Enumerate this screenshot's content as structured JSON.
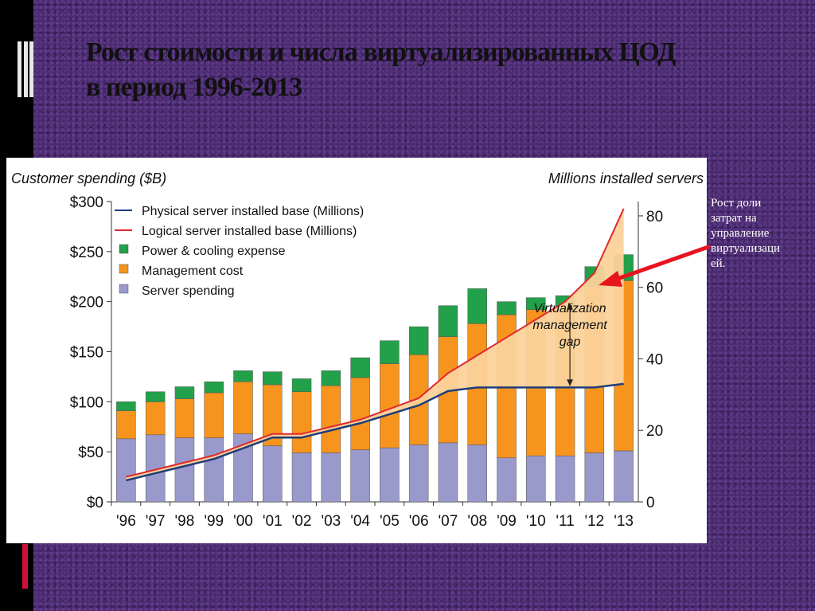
{
  "slide": {
    "title_line1": "Рост стоимости и числа виртуализированных  ЦОД",
    "title_line2": "в период 1996-2013",
    "note_lines": [
      "Рост доли",
      "затрат на",
      "управление",
      "виртуализаци",
      "ей."
    ],
    "colors": {
      "background": "#4a2a6e",
      "accent_red": "#d0103a",
      "arrow": "#e8141e"
    }
  },
  "chart_data": {
    "type": "bar",
    "stacked": true,
    "y_left_title": "Customer spending ($B)",
    "y_right_title": "Millions installed servers",
    "categories": [
      "'96",
      "'97",
      "'98",
      "'99",
      "'00",
      "'01",
      "'02",
      "'03",
      "'04",
      "'05",
      "'06",
      "'07",
      "'08",
      "'09",
      "'10",
      "'11",
      "'12",
      "'13"
    ],
    "y_left_ticks": [
      "$0",
      "$50",
      "$100",
      "$150",
      "$200",
      "$250",
      "$300"
    ],
    "y_left_range": [
      0,
      300
    ],
    "y_right_ticks": [
      "0",
      "20",
      "40",
      "60",
      "80"
    ],
    "y_right_range": [
      0,
      84
    ],
    "series": [
      {
        "name": "Server spending",
        "color": "#9999cc",
        "values": [
          63,
          67,
          64,
          64,
          68,
          56,
          49,
          49,
          52,
          54,
          57,
          59,
          57,
          44,
          46,
          46,
          49,
          51
        ]
      },
      {
        "name": "Management cost",
        "color": "#f7941d",
        "values": [
          28,
          33,
          39,
          45,
          52,
          61,
          61,
          67,
          72,
          84,
          90,
          106,
          121,
          143,
          146,
          150,
          166,
          170
        ]
      },
      {
        "name": "Power & cooling expense",
        "color": "#22a04a",
        "values": [
          9,
          10,
          12,
          11,
          11,
          13,
          13,
          15,
          20,
          23,
          28,
          31,
          35,
          13,
          12,
          10,
          20,
          26
        ]
      }
    ],
    "lines": [
      {
        "name": "Physical server installed base (Millions)",
        "color": "#1f3d7a",
        "values": [
          6,
          8,
          10,
          12,
          15,
          18,
          18,
          20,
          22,
          24.5,
          27,
          31,
          32,
          32,
          32,
          32,
          32,
          33
        ]
      },
      {
        "name": "Logical server installed base (Millions)",
        "color": "#e0282e",
        "values": [
          7,
          9,
          11,
          13,
          16,
          19,
          19,
          21,
          23,
          26,
          29,
          36,
          41,
          46,
          51,
          56,
          64,
          82
        ]
      }
    ],
    "annotation": "Virtualization management gap",
    "annotation_lines": [
      "Virtualization",
      "management",
      "gap"
    ],
    "gap_fill_color": "#fbd29a",
    "legend_position": "top-left"
  }
}
